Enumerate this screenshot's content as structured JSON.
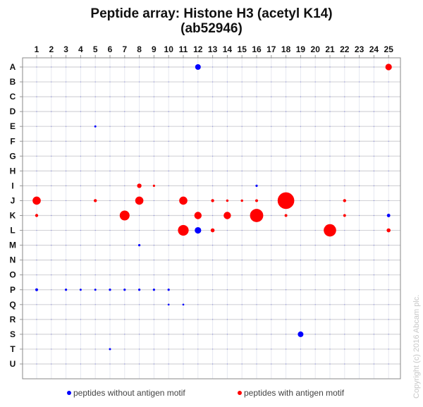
{
  "chart_data": {
    "type": "scatter",
    "title": "Peptide array:  Histone H3 (acetyl K14)",
    "subtitle": "(ab52946)",
    "columns": [
      "1",
      "2",
      "3",
      "4",
      "5",
      "6",
      "7",
      "8",
      "9",
      "10",
      "11",
      "12",
      "13",
      "14",
      "15",
      "16",
      "17",
      "18",
      "19",
      "20",
      "21",
      "22",
      "23",
      "24",
      "25"
    ],
    "rows": [
      "A",
      "B",
      "C",
      "D",
      "E",
      "F",
      "G",
      "H",
      "I",
      "J",
      "K",
      "L",
      "M",
      "N",
      "O",
      "P",
      "Q",
      "R",
      "S",
      "T",
      "U"
    ],
    "grid": true,
    "legend_placement": "bottom",
    "colors": {
      "without_motif": "#0000ff",
      "with_motif": "#ff0000"
    },
    "series": [
      {
        "name": "peptides without antigen motif",
        "color": "#0000ff",
        "points": [
          {
            "row": "A",
            "col": 12,
            "value": 0.25
          },
          {
            "row": "K",
            "col": 25,
            "value": 0.12
          },
          {
            "row": "L",
            "col": 12,
            "value": 0.3
          },
          {
            "row": "M",
            "col": 8,
            "value": 0.05
          },
          {
            "row": "I",
            "col": 16,
            "value": 0.05
          },
          {
            "row": "P",
            "col": 1,
            "value": 0.08
          },
          {
            "row": "P",
            "col": 3,
            "value": 0.05
          },
          {
            "row": "P",
            "col": 4,
            "value": 0.04
          },
          {
            "row": "P",
            "col": 5,
            "value": 0.04
          },
          {
            "row": "P",
            "col": 6,
            "value": 0.05
          },
          {
            "row": "P",
            "col": 7,
            "value": 0.05
          },
          {
            "row": "P",
            "col": 8,
            "value": 0.05
          },
          {
            "row": "P",
            "col": 9,
            "value": 0.05
          },
          {
            "row": "P",
            "col": 10,
            "value": 0.05
          },
          {
            "row": "Q",
            "col": 10,
            "value": 0.03
          },
          {
            "row": "Q",
            "col": 11,
            "value": 0.03
          },
          {
            "row": "T",
            "col": 6,
            "value": 0.04
          },
          {
            "row": "E",
            "col": 5,
            "value": 0.04
          },
          {
            "row": "S",
            "col": 19,
            "value": 0.25
          }
        ]
      },
      {
        "name": "peptides with antigen motif",
        "color": "#ff0000",
        "points": [
          {
            "row": "A",
            "col": 25,
            "value": 0.3
          },
          {
            "row": "I",
            "col": 8,
            "value": 0.18
          },
          {
            "row": "I",
            "col": 9,
            "value": 0.05
          },
          {
            "row": "J",
            "col": 1,
            "value": 0.4
          },
          {
            "row": "J",
            "col": 5,
            "value": 0.1
          },
          {
            "row": "J",
            "col": 8,
            "value": 0.4
          },
          {
            "row": "J",
            "col": 11,
            "value": 0.4
          },
          {
            "row": "J",
            "col": 13,
            "value": 0.1
          },
          {
            "row": "J",
            "col": 14,
            "value": 0.06
          },
          {
            "row": "J",
            "col": 15,
            "value": 0.06
          },
          {
            "row": "J",
            "col": 16,
            "value": 0.08
          },
          {
            "row": "J",
            "col": 18,
            "value": 0.9
          },
          {
            "row": "J",
            "col": 22,
            "value": 0.1
          },
          {
            "row": "K",
            "col": 1,
            "value": 0.1
          },
          {
            "row": "K",
            "col": 7,
            "value": 0.5
          },
          {
            "row": "K",
            "col": 12,
            "value": 0.35
          },
          {
            "row": "K",
            "col": 14,
            "value": 0.35
          },
          {
            "row": "K",
            "col": 16,
            "value": 0.7
          },
          {
            "row": "K",
            "col": 18,
            "value": 0.08
          },
          {
            "row": "K",
            "col": 22,
            "value": 0.08
          },
          {
            "row": "L",
            "col": 11,
            "value": 0.55
          },
          {
            "row": "L",
            "col": 13,
            "value": 0.15
          },
          {
            "row": "L",
            "col": 21,
            "value": 0.65
          },
          {
            "row": "L",
            "col": 25,
            "value": 0.15
          }
        ]
      }
    ],
    "copyright": "Copyright (c) 2016 Abcam plc."
  }
}
